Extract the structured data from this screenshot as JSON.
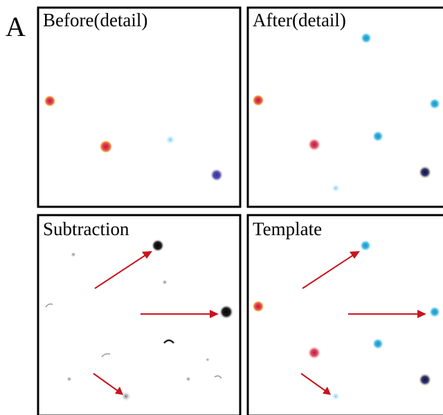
{
  "figure": {
    "label": "A",
    "panels": [
      {
        "title": "Before(detail)"
      },
      {
        "title": "After(detail)"
      },
      {
        "title": "Subtraction"
      },
      {
        "title": "Template"
      }
    ]
  }
}
